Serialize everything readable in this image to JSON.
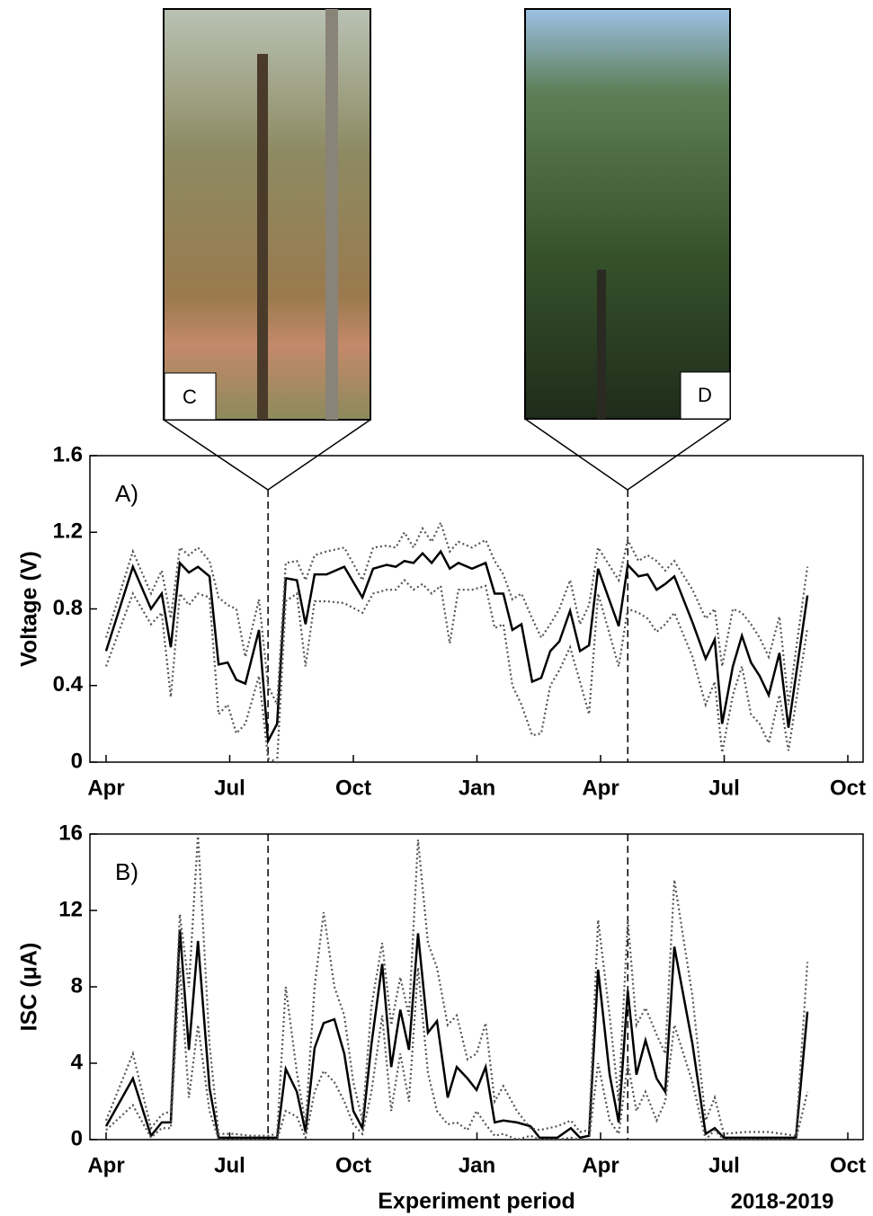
{
  "images": [
    {
      "label": "C"
    },
    {
      "label": "D"
    }
  ],
  "chart_data": [
    {
      "type": "line",
      "annotation": "A)",
      "ylabel": "Voltage (V)",
      "xlim": [
        0,
        18
      ],
      "xticks": [
        {
          "value": 0,
          "label": "Apr"
        },
        {
          "value": 3,
          "label": "Jul"
        },
        {
          "value": 6,
          "label": "Oct"
        },
        {
          "value": 9,
          "label": "Jan"
        },
        {
          "value": 12,
          "label": "Apr"
        },
        {
          "value": 15,
          "label": "Jul"
        },
        {
          "value": 18,
          "label": "Oct"
        }
      ],
      "ylim": [
        0,
        1.6
      ],
      "yticks": [
        0,
        0.4,
        0.8,
        1.2,
        1.6
      ],
      "vlines": [
        3.93,
        12.66
      ],
      "x": [
        0,
        0.65,
        1.09,
        1.35,
        1.57,
        1.79,
        2.01,
        2.23,
        2.51,
        2.73,
        2.95,
        3.16,
        3.38,
        3.71,
        3.93,
        4.15,
        4.36,
        4.63,
        4.84,
        5.06,
        5.35,
        5.78,
        6.22,
        6.48,
        6.81,
        7.03,
        7.24,
        7.46,
        7.68,
        7.9,
        8.12,
        8.34,
        8.55,
        8.88,
        9.21,
        9.43,
        9.64,
        9.86,
        10.08,
        10.34,
        10.56,
        10.78,
        11.0,
        11.26,
        11.5,
        11.72,
        11.94,
        12.44,
        12.66,
        12.92,
        13.14,
        13.36,
        13.57,
        13.79,
        14.23,
        14.55,
        14.77,
        14.95,
        15.21,
        15.43,
        15.65,
        15.86,
        16.08,
        16.34,
        16.56,
        17.02
      ],
      "series": [
        {
          "color": "#000000",
          "dash": "solid",
          "values": [
            0.58,
            1.02,
            0.8,
            0.88,
            0.6,
            1.04,
            0.99,
            1.02,
            0.97,
            0.51,
            0.52,
            0.43,
            0.41,
            0.69,
            0.11,
            0.2,
            0.96,
            0.95,
            0.72,
            0.98,
            0.98,
            1.02,
            0.86,
            1.01,
            1.03,
            1.02,
            1.05,
            1.04,
            1.09,
            1.04,
            1.1,
            1.01,
            1.04,
            1.01,
            1.04,
            0.88,
            0.88,
            0.69,
            0.72,
            0.42,
            0.44,
            0.58,
            0.63,
            0.79,
            0.58,
            0.61,
            1.01,
            0.71,
            1.03,
            0.97,
            0.98,
            0.9,
            0.93,
            0.97,
            0.73,
            0.54,
            0.64,
            0.2,
            0.5,
            0.66,
            0.52,
            0.45,
            0.35,
            0.57,
            0.18,
            0.87
          ]
        },
        {
          "color": "#555555",
          "dash": "dotted",
          "values": [
            0.65,
            1.1,
            0.88,
            1.0,
            0.75,
            1.12,
            1.08,
            1.12,
            1.05,
            0.86,
            0.82,
            0.8,
            0.55,
            0.85,
            0.4,
            0.3,
            1.04,
            1.05,
            0.95,
            1.08,
            1.1,
            1.12,
            0.95,
            1.12,
            1.13,
            1.12,
            1.2,
            1.12,
            1.22,
            1.15,
            1.25,
            1.1,
            1.15,
            1.12,
            1.16,
            1.05,
            0.98,
            0.85,
            0.88,
            0.75,
            0.65,
            0.72,
            0.8,
            0.95,
            0.72,
            0.82,
            1.12,
            0.95,
            1.16,
            1.05,
            1.08,
            1.05,
            1.0,
            1.05,
            0.9,
            0.75,
            0.8,
            0.5,
            0.8,
            0.78,
            0.72,
            0.65,
            0.55,
            0.76,
            0.3,
            1.02
          ]
        },
        {
          "color": "#555555",
          "dash": "dotted",
          "values": [
            0.5,
            0.88,
            0.72,
            0.78,
            0.34,
            0.88,
            0.82,
            0.88,
            0.86,
            0.25,
            0.3,
            0.15,
            0.2,
            0.45,
            0.02,
            0,
            0.84,
            0.88,
            0.5,
            0.84,
            0.84,
            0.83,
            0.78,
            0.88,
            0.9,
            0.9,
            0.95,
            0.9,
            0.93,
            0.88,
            0.92,
            0.62,
            0.9,
            0.9,
            0.92,
            0.7,
            0.72,
            0.4,
            0.3,
            0.14,
            0.15,
            0.4,
            0.48,
            0.6,
            0.42,
            0.25,
            0.88,
            0.5,
            0.8,
            0.78,
            0.75,
            0.68,
            0.72,
            0.78,
            0.55,
            0.3,
            0.42,
            0.05,
            0.35,
            0.5,
            0.25,
            0.2,
            0.1,
            0.35,
            0.06,
            0.7
          ]
        }
      ]
    },
    {
      "type": "line",
      "annotation": "B)",
      "ylabel": "ISC (μA)",
      "xlabel": "Experiment period",
      "period": "2018-2019",
      "xlim": [
        0,
        18
      ],
      "xticks": [
        {
          "value": 0,
          "label": "Apr"
        },
        {
          "value": 3,
          "label": "Jul"
        },
        {
          "value": 6,
          "label": "Oct"
        },
        {
          "value": 9,
          "label": "Jan"
        },
        {
          "value": 12,
          "label": "Apr"
        },
        {
          "value": 15,
          "label": "Jul"
        },
        {
          "value": 18,
          "label": "Oct"
        }
      ],
      "ylim": [
        0,
        16
      ],
      "yticks": [
        0,
        4,
        8,
        12,
        16
      ],
      "vlines": [
        3.93,
        12.66
      ],
      "x": [
        0,
        0.65,
        1.09,
        1.35,
        1.57,
        1.79,
        2.01,
        2.23,
        2.51,
        2.73,
        3.1,
        3.53,
        3.93,
        4.15,
        4.36,
        4.63,
        4.84,
        5.06,
        5.28,
        5.54,
        5.78,
        6.0,
        6.22,
        6.44,
        6.7,
        6.92,
        7.14,
        7.35,
        7.57,
        7.81,
        8.03,
        8.29,
        8.51,
        8.77,
        8.99,
        9.21,
        9.43,
        9.64,
        9.97,
        10.3,
        10.52,
        10.95,
        11.28,
        11.5,
        11.72,
        11.94,
        12.22,
        12.44,
        12.66,
        12.87,
        13.09,
        13.36,
        13.57,
        13.79,
        14.23,
        14.55,
        14.77,
        14.99,
        15.54,
        16.08,
        16.74,
        17.02
      ],
      "series": [
        {
          "color": "#000000",
          "dash": "solid",
          "values": [
            0.7,
            3.2,
            0.2,
            0.9,
            0.9,
            11.0,
            4.7,
            10.4,
            2.7,
            0.1,
            0.1,
            0.1,
            0.1,
            0.1,
            3.7,
            2.5,
            0.4,
            4.8,
            6.1,
            6.3,
            4.5,
            1.5,
            0.6,
            5.0,
            9.2,
            3.8,
            6.8,
            4.7,
            10.8,
            5.6,
            6.2,
            2.2,
            3.8,
            3.2,
            2.6,
            3.8,
            0.9,
            1.0,
            0.9,
            0.7,
            0.1,
            0.1,
            0.6,
            0.1,
            0.2,
            8.9,
            3.4,
            0.9,
            7.8,
            3.4,
            5.2,
            3.2,
            2.5,
            10.1,
            5.0,
            0.3,
            0.6,
            0.1,
            0.1,
            0.1,
            0.1,
            6.7
          ]
        },
        {
          "color": "#555555",
          "dash": "dotted",
          "values": [
            1.0,
            4.5,
            0.6,
            1.3,
            1.5,
            11.8,
            8.0,
            16.0,
            5.0,
            0.3,
            0.3,
            0.2,
            0.2,
            0.3,
            8.0,
            3.5,
            0.8,
            8.0,
            11.9,
            8.0,
            6.5,
            3.0,
            1.0,
            7.0,
            10.3,
            6.0,
            8.5,
            6.5,
            15.7,
            10.3,
            9.0,
            6.0,
            6.5,
            4.2,
            4.5,
            6.1,
            2.0,
            2.8,
            1.5,
            0.6,
            0.5,
            0.7,
            1.0,
            0.4,
            0.5,
            11.5,
            6.5,
            2.0,
            11.5,
            6.0,
            6.9,
            5.5,
            4.5,
            13.6,
            7.5,
            1.0,
            2.2,
            0.3,
            0.4,
            0.4,
            0.2,
            9.3
          ]
        },
        {
          "color": "#555555",
          "dash": "dotted",
          "values": [
            0.5,
            1.8,
            0.1,
            0.6,
            0.6,
            9.0,
            2.2,
            6.0,
            1.5,
            0,
            0,
            0,
            0,
            0,
            1.5,
            1.2,
            0.1,
            2.5,
            3.6,
            3.0,
            2.0,
            0.8,
            0.3,
            2.5,
            6.5,
            1.5,
            4.5,
            2.0,
            9.0,
            3.5,
            1.5,
            0.8,
            0.9,
            0.5,
            1.5,
            0.8,
            0.2,
            0.3,
            0,
            0.2,
            0,
            0,
            0.1,
            0,
            0,
            4.0,
            1.0,
            0.3,
            4.0,
            1.5,
            2.5,
            1.0,
            2.0,
            6.0,
            3.0,
            0,
            0.5,
            0,
            0,
            0,
            0,
            2.5
          ]
        }
      ]
    }
  ]
}
